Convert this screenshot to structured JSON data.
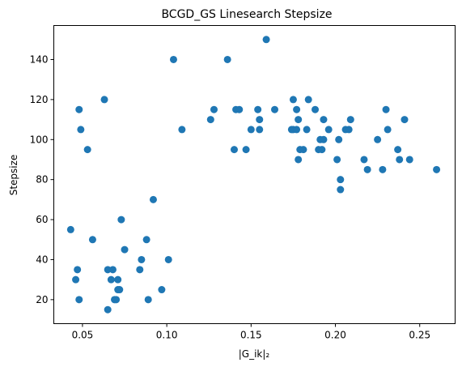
{
  "chart_data": {
    "type": "scatter",
    "title": "BCGD_GS Linesearch Stepsize",
    "xlabel": "|G_ik|₂",
    "ylabel": "Stepsize",
    "xlim": [
      0.033,
      0.271
    ],
    "ylim": [
      8,
      157
    ],
    "xticks": [
      0.05,
      0.1,
      0.15,
      0.2,
      0.25
    ],
    "xtick_labels": [
      "0.05",
      "0.10",
      "0.15",
      "0.20",
      "0.25"
    ],
    "yticks": [
      20,
      40,
      60,
      80,
      100,
      120,
      140
    ],
    "ytick_labels": [
      "20",
      "40",
      "60",
      "80",
      "100",
      "120",
      "140"
    ],
    "grid": false,
    "marker_color": "#1f77b4",
    "series": [
      {
        "x": [
          0.043,
          0.046,
          0.047,
          0.048,
          0.048,
          0.049,
          0.053,
          0.056,
          0.063,
          0.065,
          0.065,
          0.067,
          0.068,
          0.069,
          0.07,
          0.071,
          0.071,
          0.072,
          0.073,
          0.075,
          0.084,
          0.085,
          0.088,
          0.089,
          0.092,
          0.097,
          0.101,
          0.104,
          0.109,
          0.126,
          0.128,
          0.136,
          0.14,
          0.141,
          0.143,
          0.147,
          0.15,
          0.154,
          0.155,
          0.155,
          0.159,
          0.164,
          0.174,
          0.175,
          0.175,
          0.177,
          0.177,
          0.178,
          0.178,
          0.179,
          0.181,
          0.183,
          0.184,
          0.188,
          0.19,
          0.191,
          0.192,
          0.193,
          0.193,
          0.196,
          0.201,
          0.202,
          0.203,
          0.203,
          0.206,
          0.208,
          0.209,
          0.217,
          0.219,
          0.225,
          0.228,
          0.23,
          0.231,
          0.237,
          0.238,
          0.241,
          0.244,
          0.26
        ],
        "y": [
          55,
          30,
          35,
          20,
          115,
          105,
          95,
          50,
          120,
          15,
          35,
          30,
          35,
          20,
          20,
          30,
          25,
          25,
          60,
          45,
          35,
          40,
          50,
          20,
          70,
          25,
          40,
          140,
          105,
          110,
          115,
          140,
          95,
          115,
          115,
          95,
          105,
          115,
          105,
          110,
          150,
          115,
          105,
          120,
          105,
          115,
          105,
          90,
          110,
          95,
          95,
          105,
          120,
          115,
          95,
          100,
          95,
          110,
          100,
          105,
          90,
          100,
          75,
          80,
          105,
          105,
          110,
          90,
          85,
          100,
          85,
          115,
          105,
          95,
          90,
          110,
          90,
          85
        ]
      }
    ]
  }
}
